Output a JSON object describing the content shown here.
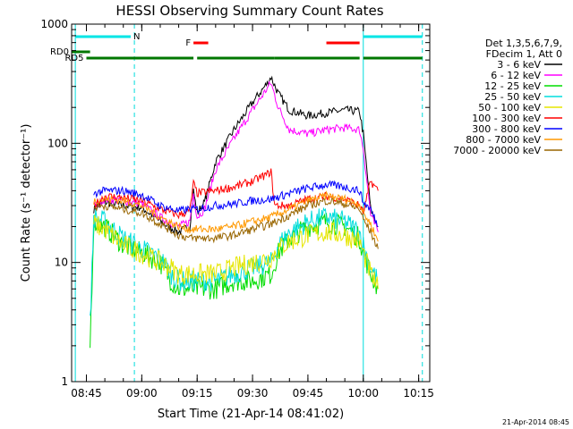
{
  "chart_data": {
    "type": "line",
    "title": "HESSI Observing Summary Count Rates",
    "xlabel": "Start Time (21-Apr-14 08:41:02)",
    "ylabel": "Count Rate (s⁻¹ detector⁻¹)",
    "y_scale": "log",
    "xlim": [
      "08:41",
      "10:18"
    ],
    "ylim": [
      1,
      1000
    ],
    "x_ticks": [
      "08:45",
      "09:00",
      "09:15",
      "09:30",
      "09:45",
      "10:00",
      "10:15"
    ],
    "y_ticks": [
      {
        "value": 1,
        "label": "1"
      },
      {
        "value": 10,
        "label": "10"
      },
      {
        "value": 100,
        "label": "100"
      },
      {
        "value": 1000,
        "label": "1000"
      }
    ],
    "grid": false,
    "legend_position": "right",
    "legend_header": [
      "Det 1,3,5,6,7,9,",
      "FDecim 1, Att 0"
    ],
    "series": [
      {
        "name": "3 - 6 keV",
        "color": "#000000",
        "x": [
          "08:46",
          "08:47",
          "08:50",
          "08:55",
          "09:00",
          "09:05",
          "09:10",
          "09:13",
          "09:14",
          "09:15",
          "09:17",
          "09:20",
          "09:25",
          "09:30",
          "09:34",
          "09:35",
          "09:37",
          "09:40",
          "09:45",
          "09:50",
          "09:55",
          "09:59",
          "10:00",
          "10:02",
          "10:04"
        ],
        "y": [
          null,
          28,
          32,
          30,
          29,
          22,
          18,
          20,
          40,
          26,
          32,
          70,
          130,
          220,
          320,
          360,
          260,
          190,
          170,
          180,
          190,
          185,
          120,
          28,
          20
        ]
      },
      {
        "name": "6 - 12 keV",
        "color": "#ff00ff",
        "x": [
          "08:47",
          "08:50",
          "08:55",
          "09:00",
          "09:05",
          "09:10",
          "09:13",
          "09:14",
          "09:15",
          "09:17",
          "09:20",
          "09:25",
          "09:30",
          "09:34",
          "09:35",
          "09:37",
          "09:40",
          "09:45",
          "09:50",
          "09:55",
          "09:59",
          "10:00",
          "10:02",
          "10:04"
        ],
        "y": [
          30,
          34,
          33,
          31,
          24,
          20,
          22,
          38,
          24,
          28,
          60,
          110,
          190,
          290,
          320,
          200,
          130,
          120,
          130,
          135,
          130,
          90,
          25,
          18
        ]
      },
      {
        "name": "12 - 25 keV",
        "color": "#00dd00",
        "x": [
          "08:46",
          "08:47",
          "08:50",
          "08:55",
          "09:00",
          "09:05",
          "09:08",
          "09:10",
          "09:13",
          "09:15",
          "09:20",
          "09:25",
          "09:30",
          "09:35",
          "09:37",
          "09:40",
          "09:45",
          "09:50",
          "09:55",
          "09:59",
          "10:00",
          "10:02",
          "10:04"
        ],
        "y": [
          2,
          22,
          20,
          14,
          12,
          10,
          7,
          6,
          6,
          6,
          6,
          7,
          7,
          8,
          12,
          16,
          20,
          22,
          20,
          16,
          12,
          8,
          6
        ]
      },
      {
        "name": "25 - 50 keV",
        "color": "#00dddd",
        "x": [
          "08:46",
          "08:47",
          "08:50",
          "08:55",
          "09:00",
          "09:05",
          "09:08",
          "09:10",
          "09:13",
          "09:15",
          "09:20",
          "09:25",
          "09:30",
          "09:35",
          "09:37",
          "09:40",
          "09:45",
          "09:50",
          "09:55",
          "09:59",
          "10:00",
          "10:02",
          "10:04"
        ],
        "y": [
          3,
          24,
          22,
          16,
          13,
          11,
          8,
          7,
          7,
          7,
          7,
          8,
          9,
          10,
          14,
          18,
          22,
          24,
          22,
          18,
          14,
          9,
          7
        ]
      },
      {
        "name": "50 - 100 keV",
        "color": "#e6e600",
        "x": [
          "08:47",
          "08:50",
          "08:55",
          "09:00",
          "09:05",
          "09:08",
          "09:10",
          "09:13",
          "09:15",
          "09:20",
          "09:25",
          "09:30",
          "09:35",
          "09:37",
          "09:40",
          "09:45",
          "09:50",
          "09:55",
          "09:59",
          "10:00",
          "10:02",
          "10:04"
        ],
        "y": [
          21,
          19,
          14,
          12,
          10,
          9,
          8,
          8,
          8,
          8,
          9,
          10,
          11,
          13,
          15,
          17,
          18,
          17,
          15,
          12,
          8,
          6
        ]
      },
      {
        "name": "100 - 300 keV",
        "color": "#ff0000",
        "x": [
          "08:47",
          "08:50",
          "08:55",
          "09:00",
          "09:05",
          "09:10",
          "09:13",
          "09:14",
          "09:15",
          "09:20",
          "09:25",
          "09:30",
          "09:34",
          "09:35",
          "09:36",
          "09:40",
          "09:45",
          "09:50",
          "09:55",
          "09:59",
          "10:00",
          "10:02",
          "10:04"
        ],
        "y": [
          30,
          36,
          35,
          33,
          28,
          25,
          27,
          46,
          38,
          40,
          43,
          48,
          55,
          58,
          30,
          30,
          34,
          36,
          34,
          30,
          26,
          48,
          40
        ]
      },
      {
        "name": "300 - 800 keV",
        "color": "#0000ff",
        "x": [
          "08:47",
          "08:50",
          "08:55",
          "09:00",
          "09:05",
          "09:10",
          "09:13",
          "09:15",
          "09:20",
          "09:25",
          "09:30",
          "09:35",
          "09:40",
          "09:45",
          "09:50",
          "09:55",
          "09:59",
          "10:00",
          "10:02",
          "10:04"
        ],
        "y": [
          38,
          40,
          40,
          37,
          30,
          27,
          28,
          28,
          30,
          31,
          33,
          34,
          38,
          42,
          45,
          43,
          40,
          32,
          28,
          20
        ]
      },
      {
        "name": "800 - 7000 keV",
        "color": "#ff9900",
        "x": [
          "08:47",
          "08:50",
          "08:55",
          "09:00",
          "09:05",
          "09:10",
          "09:13",
          "09:15",
          "09:20",
          "09:25",
          "09:30",
          "09:35",
          "09:40",
          "09:45",
          "09:50",
          "09:55",
          "09:59",
          "10:00",
          "10:02",
          "10:04"
        ],
        "y": [
          33,
          34,
          33,
          30,
          24,
          20,
          19,
          19,
          19,
          20,
          22,
          24,
          28,
          33,
          36,
          34,
          31,
          26,
          21,
          15
        ]
      },
      {
        "name": "7000 - 20000 keV",
        "color": "#996600",
        "x": [
          "08:47",
          "08:50",
          "08:55",
          "09:00",
          "09:05",
          "09:10",
          "09:13",
          "09:15",
          "09:20",
          "09:25",
          "09:30",
          "09:35",
          "09:40",
          "09:45",
          "09:50",
          "09:55",
          "09:59",
          "10:00",
          "10:02",
          "10:04"
        ],
        "y": [
          29,
          30,
          28,
          26,
          21,
          17,
          16,
          16,
          16,
          17,
          19,
          21,
          25,
          30,
          33,
          31,
          28,
          23,
          18,
          13
        ]
      }
    ],
    "state_bars": [
      {
        "label": "N",
        "color": "#00e5e5",
        "level": 1,
        "segments": [
          [
            "08:42",
            "08:57"
          ],
          [
            "10:00",
            "10:16"
          ]
        ]
      },
      {
        "label": "F",
        "color": "#ff0000",
        "level": 2,
        "segments": [
          [
            "09:14",
            "09:18"
          ],
          [
            "09:50",
            "09:59"
          ]
        ]
      },
      {
        "label": "RD0",
        "color": "#007700",
        "level": 3,
        "segments": [
          [
            "08:41",
            "08:46"
          ]
        ]
      },
      {
        "label": "RD5",
        "color": "#007700",
        "level": 4,
        "segments": [
          [
            "08:45",
            "09:14"
          ],
          [
            "09:15",
            "09:36"
          ],
          [
            "09:36",
            "09:59"
          ],
          [
            "10:00",
            "10:16"
          ]
        ]
      }
    ],
    "vertical_lines": [
      {
        "x": "08:42",
        "style": "solid",
        "color": "#00dddd"
      },
      {
        "x": "08:58",
        "style": "dashed",
        "color": "#00dddd"
      },
      {
        "x": "10:00",
        "style": "solid",
        "color": "#00dddd"
      },
      {
        "x": "10:16",
        "style": "dashed",
        "color": "#00dddd"
      }
    ],
    "timestamp": "21-Apr-2014 08:45"
  }
}
